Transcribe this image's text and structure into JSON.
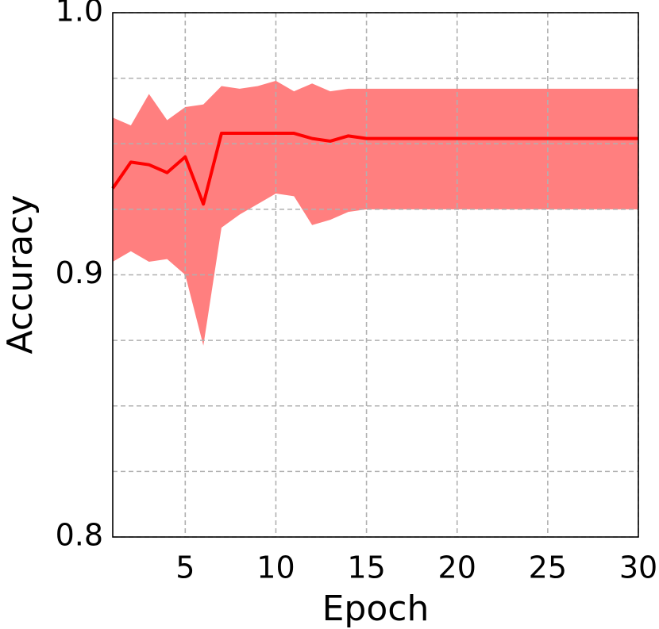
{
  "chart_data": {
    "type": "line",
    "xlabel": "Epoch",
    "ylabel": "Accuracy",
    "x": [
      1,
      2,
      3,
      4,
      5,
      6,
      7,
      8,
      9,
      10,
      11,
      12,
      13,
      14,
      15,
      16,
      17,
      18,
      19,
      20,
      21,
      22,
      23,
      24,
      25,
      26,
      27,
      28,
      29,
      30
    ],
    "series": [
      {
        "color": "#ff0000",
        "band_color": "#ff7f7f",
        "values": [
          0.933,
          0.943,
          0.942,
          0.939,
          0.945,
          0.927,
          0.954,
          0.954,
          0.954,
          0.954,
          0.954,
          0.952,
          0.951,
          0.953,
          0.952,
          0.952,
          0.952,
          0.952,
          0.952,
          0.952,
          0.952,
          0.952,
          0.952,
          0.952,
          0.952,
          0.952,
          0.952,
          0.952,
          0.952,
          0.952
        ],
        "upper": [
          0.96,
          0.957,
          0.969,
          0.959,
          0.964,
          0.965,
          0.972,
          0.971,
          0.972,
          0.974,
          0.97,
          0.973,
          0.97,
          0.971,
          0.971,
          0.971,
          0.971,
          0.971,
          0.971,
          0.971,
          0.971,
          0.971,
          0.971,
          0.971,
          0.971,
          0.971,
          0.971,
          0.971,
          0.971,
          0.971
        ],
        "lower": [
          0.905,
          0.909,
          0.905,
          0.906,
          0.9,
          0.873,
          0.918,
          0.923,
          0.927,
          0.931,
          0.93,
          0.919,
          0.921,
          0.924,
          0.925,
          0.925,
          0.925,
          0.925,
          0.925,
          0.925,
          0.925,
          0.925,
          0.925,
          0.925,
          0.925,
          0.925,
          0.925,
          0.925,
          0.925,
          0.925
        ]
      }
    ],
    "xlim": [
      1,
      30
    ],
    "ylim": [
      0.8,
      1.0
    ],
    "xticks": [
      5,
      10,
      15,
      20,
      25,
      30
    ],
    "yticks": [
      0.8,
      0.9,
      {
        "value": 1.0,
        "label": "1.0"
      }
    ],
    "yminorticks": [
      0.825,
      0.85,
      0.875,
      0.925,
      0.95,
      0.975
    ],
    "grid": true
  }
}
